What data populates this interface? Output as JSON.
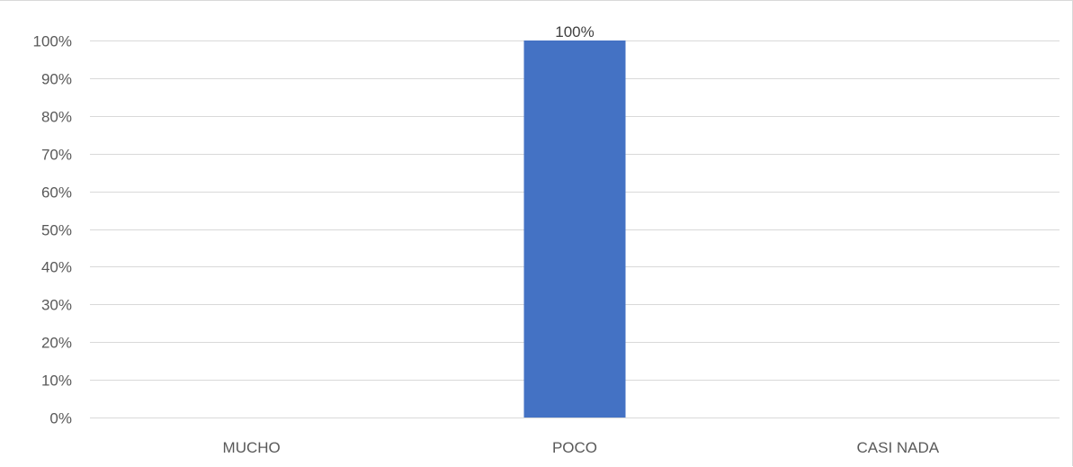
{
  "chart_data": {
    "type": "bar",
    "categories": [
      "MUCHO",
      "POCO",
      "CASI NADA"
    ],
    "values": [
      0,
      100,
      0
    ],
    "data_labels": [
      "",
      "100%",
      ""
    ],
    "y_ticks": [
      "0%",
      "10%",
      "20%",
      "30%",
      "40%",
      "50%",
      "60%",
      "70%",
      "80%",
      "90%",
      "100%"
    ],
    "ylim": [
      0,
      100
    ],
    "title": "",
    "xlabel": "",
    "ylabel": "",
    "grid": true,
    "legend": "none",
    "bar_color": "#4472c4"
  }
}
